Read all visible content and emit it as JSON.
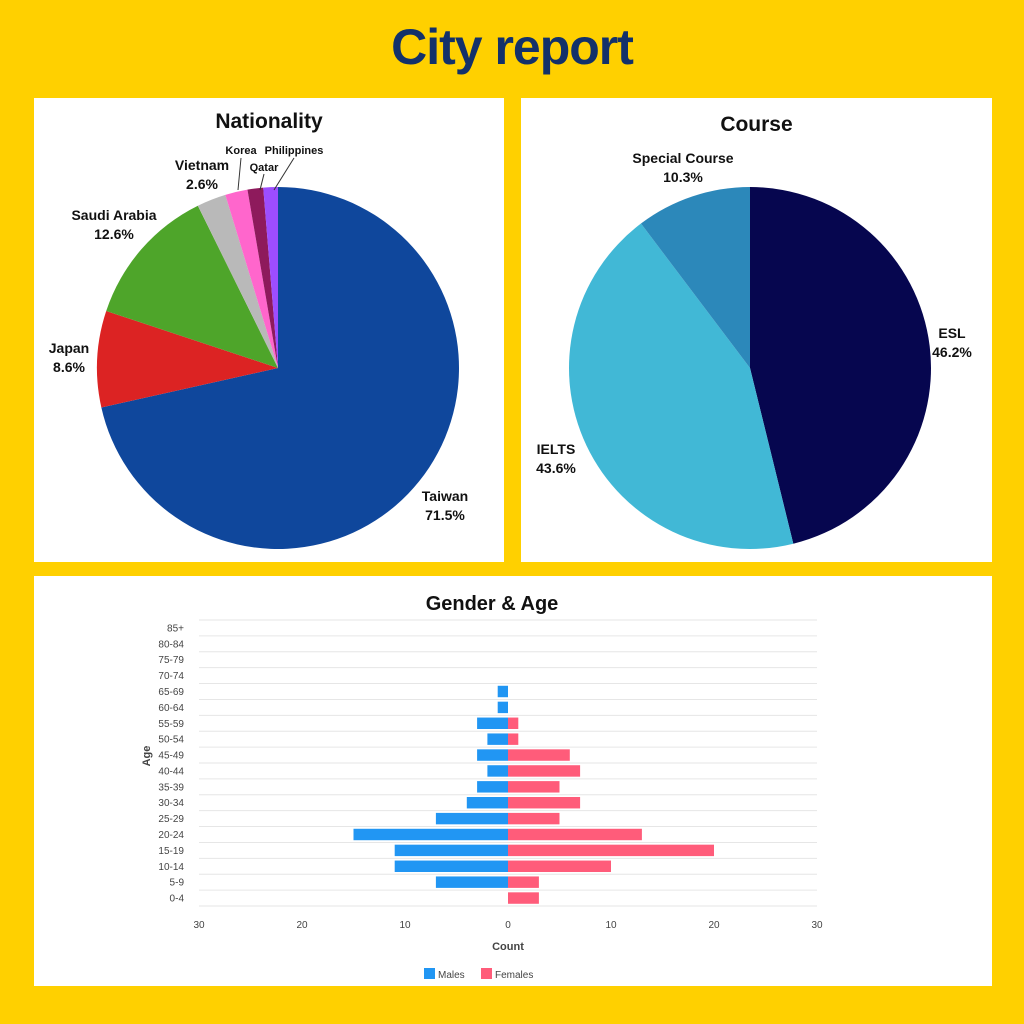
{
  "header": {
    "title": "City report"
  },
  "colors": {
    "background": "#FFD000",
    "title": "#13316A",
    "males": "#2196F3",
    "females": "#FF5C7A"
  },
  "chart_data": [
    {
      "type": "pie",
      "title": "Nationality",
      "slices": [
        {
          "label": "Taiwan",
          "value": 71.5,
          "pct": "71.5%",
          "color": "#0F479C"
        },
        {
          "label": "Japan",
          "value": 8.6,
          "pct": "8.6%",
          "color": "#DC2323"
        },
        {
          "label": "Saudi Arabia",
          "value": 12.6,
          "pct": "12.6%",
          "color": "#4EA52A"
        },
        {
          "label": "Vietnam",
          "value": 2.6,
          "pct": "2.6%",
          "color": "#B9B9B9"
        },
        {
          "label": "Korea",
          "value": 2.0,
          "pct": "",
          "color": "#FF66CC"
        },
        {
          "label": "Qatar",
          "value": 1.4,
          "pct": "",
          "color": "#8E1A5C"
        },
        {
          "label": "Philippines",
          "value": 1.3,
          "pct": "",
          "color": "#9D4DFF"
        }
      ]
    },
    {
      "type": "pie",
      "title": "Course",
      "slices": [
        {
          "label": "ESL",
          "value": 46.2,
          "pct": "46.2%",
          "color": "#06064F"
        },
        {
          "label": "IELTS",
          "value": 43.6,
          "pct": "43.6%",
          "color": "#41B8D6"
        },
        {
          "label": "Special Course",
          "value": 10.3,
          "pct": "10.3%",
          "color": "#2C88BA"
        }
      ]
    },
    {
      "type": "bar",
      "orientation": "horizontal",
      "title": "Gender & Age",
      "xlabel": "Count",
      "ylabel": "Age",
      "xlim": [
        -30,
        30
      ],
      "xticks": [
        "30",
        "20",
        "10",
        "0",
        "10",
        "20",
        "30"
      ],
      "categories": [
        "0-4",
        "5-9",
        "10-14",
        "15-19",
        "20-24",
        "25-29",
        "30-34",
        "35-39",
        "40-44",
        "45-49",
        "50-54",
        "55-59",
        "60-64",
        "65-69",
        "70-74",
        "75-79",
        "80-84",
        "85+"
      ],
      "series": [
        {
          "name": "Males",
          "values": [
            0,
            7,
            11,
            11,
            15,
            7,
            4,
            3,
            2,
            3,
            2,
            3,
            1,
            1,
            0,
            0,
            0,
            0
          ]
        },
        {
          "name": "Females",
          "values": [
            3,
            3,
            10,
            20,
            13,
            5,
            7,
            5,
            7,
            6,
            1,
            1,
            0,
            0,
            0,
            0,
            0,
            0
          ]
        }
      ],
      "legend": "bottom"
    }
  ]
}
